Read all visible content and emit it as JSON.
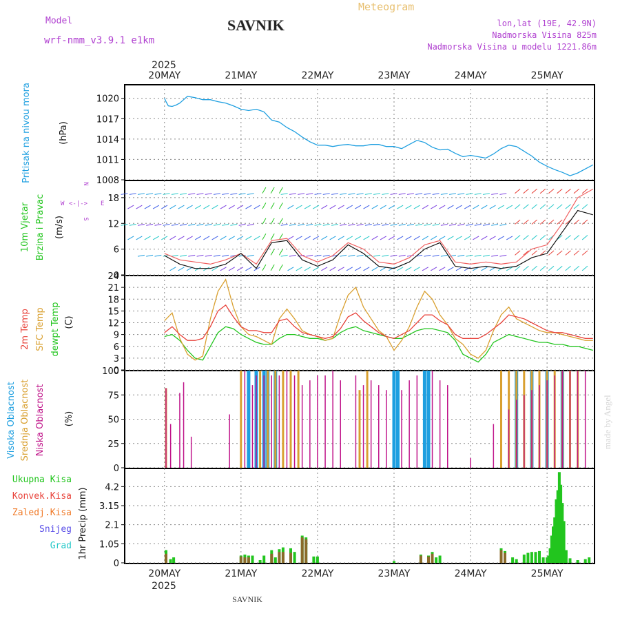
{
  "header": {
    "model_label": "Model",
    "model_name": "wrf-nmm_v3.9.1  e1km",
    "title": "SAVNIK",
    "product": "Meteogram",
    "coords": "lon,lat (19E, 42.9N)",
    "altitude": "Nadmorska Visina 825m",
    "model_altitude": "Nadmorska Visina u modelu 1221.86m",
    "footer": "SAVNIK",
    "credit": "made by Angel",
    "year": "2025"
  },
  "colors": {
    "pressure": "#1e9fe0",
    "t2m": "#e8423a",
    "sfc": "#d9a030",
    "dewpt": "#22c51e",
    "cloud_high": "#1e9fe0",
    "cloud_mid": "#d9a030",
    "cloud_low": "#c0158a",
    "precip_total": "#22c51e",
    "precip_conv": "#e8423a",
    "precip_frz": "#f07a28",
    "snow": "#5a4fe8",
    "graupel": "#22c8c8",
    "wind_label": "#22c51e",
    "cloud_label_model": "#b040d0",
    "grid": "#888888"
  },
  "chart_data": [
    {
      "type": "line",
      "panel": "pressure",
      "ylabel": [
        "Pritisak na nivou mora",
        "(hPa)"
      ],
      "ylim": [
        1008,
        1022
      ],
      "yticks": [
        1008,
        1011,
        1014,
        1017,
        1020
      ],
      "x_days": [
        "20MAY",
        "21MAY",
        "22MAY",
        "23MAY",
        "24MAY",
        "25MAY"
      ],
      "grid": true,
      "series": [
        {
          "key": "pressure",
          "x": [
            0,
            0.02,
            0.05,
            0.1,
            0.15,
            0.2,
            0.3,
            0.4,
            0.5,
            0.6,
            0.7,
            0.8,
            0.9,
            1.0,
            1.1,
            1.2,
            1.3,
            1.4,
            1.5,
            1.6,
            1.7,
            1.8,
            1.9,
            2.0,
            2.1,
            2.2,
            2.3,
            2.4,
            2.5,
            2.6,
            2.7,
            2.8,
            2.9,
            3.0,
            3.1,
            3.2,
            3.3,
            3.4,
            3.5,
            3.6,
            3.7,
            3.8,
            3.9,
            4.0,
            4.1,
            4.2,
            4.3,
            4.4,
            4.5,
            4.6,
            4.7,
            4.8,
            4.9,
            5.0,
            5.1,
            5.2,
            5.3,
            5.4,
            5.5,
            5.6
          ],
          "y": [
            1020,
            1019.5,
            1018.9,
            1018.8,
            1019,
            1019.3,
            1020.3,
            1020.1,
            1019.8,
            1019.8,
            1019.5,
            1019.3,
            1018.9,
            1018.4,
            1018.2,
            1018.4,
            1018,
            1016.8,
            1016.5,
            1015.7,
            1015.1,
            1014.3,
            1013.6,
            1013.1,
            1013.1,
            1012.9,
            1013.1,
            1013.2,
            1013,
            1013,
            1013.2,
            1013.2,
            1012.9,
            1012.9,
            1012.6,
            1013.2,
            1013.8,
            1013.5,
            1012.8,
            1012.4,
            1012.5,
            1011.9,
            1011.4,
            1011.6,
            1011.4,
            1011.2,
            1011.8,
            1012.6,
            1013.1,
            1012.9,
            1012.2,
            1011.5,
            1010.6,
            1010,
            1009.5,
            1009.1,
            1008.6,
            1009,
            1009.6,
            1010.2
          ]
        }
      ]
    },
    {
      "type": "line",
      "panel": "wind",
      "ylabel": [
        "10m Vjetar",
        "Brzina i Pravac",
        "(m/s)"
      ],
      "compass": [
        "N",
        "W",
        "E",
        "S"
      ],
      "ylim": [
        0,
        22
      ],
      "yticks": [
        0,
        6,
        12,
        18
      ],
      "grid": true,
      "note": "Direction arrows in the panel fill; approximate wind speed and gust traces.",
      "series": [
        {
          "key": "wind_speed",
          "x": [
            0,
            0.2,
            0.4,
            0.6,
            0.8,
            1.0,
            1.2,
            1.4,
            1.6,
            1.8,
            2.0,
            2.2,
            2.4,
            2.6,
            2.8,
            3.0,
            3.2,
            3.4,
            3.6,
            3.8,
            4.0,
            4.2,
            4.4,
            4.6,
            4.8,
            5.0,
            5.2,
            5.4,
            5.6
          ],
          "y": [
            4.5,
            2.5,
            1.5,
            1.5,
            2.5,
            5,
            1.5,
            7.5,
            8,
            3.5,
            2,
            3.5,
            7,
            5,
            2,
            1.5,
            3,
            6,
            7.5,
            2,
            1.5,
            2,
            1.5,
            2,
            4,
            5,
            10,
            15,
            14
          ]
        },
        {
          "key": "wind_gust",
          "x": [
            0,
            0.2,
            0.4,
            0.6,
            0.8,
            1.0,
            1.2,
            1.4,
            1.6,
            1.8,
            2.0,
            2.2,
            2.4,
            2.6,
            2.8,
            3.0,
            3.2,
            3.4,
            3.6,
            3.8,
            4.0,
            4.2,
            4.4,
            4.6,
            4.8,
            5.0,
            5.2,
            5.4,
            5.6
          ],
          "y": [
            5,
            3.5,
            3,
            2.5,
            3.5,
            5,
            2.5,
            8,
            8.5,
            4.5,
            3,
            4.5,
            7.5,
            6,
            3,
            2.5,
            4,
            7,
            8,
            3,
            2.5,
            3,
            2.5,
            3,
            6,
            7,
            12,
            18,
            20
          ]
        }
      ]
    },
    {
      "type": "line",
      "panel": "temperature",
      "ylabel": [
        "2m Temp",
        "SFC Temp",
        "dewpt Temp",
        "(C)"
      ],
      "ylim": [
        0,
        24
      ],
      "yticks": [
        0,
        3,
        6,
        9,
        12,
        15,
        18,
        21,
        24
      ],
      "grid": true,
      "series": [
        {
          "key": "t2m",
          "name": "2m Temp",
          "x": [
            0,
            0.1,
            0.2,
            0.3,
            0.4,
            0.5,
            0.6,
            0.7,
            0.8,
            0.9,
            1.0,
            1.1,
            1.2,
            1.3,
            1.4,
            1.5,
            1.6,
            1.7,
            1.8,
            1.9,
            2.0,
            2.1,
            2.2,
            2.3,
            2.4,
            2.5,
            2.6,
            2.7,
            2.8,
            2.9,
            3.0,
            3.1,
            3.2,
            3.3,
            3.4,
            3.5,
            3.6,
            3.7,
            3.8,
            3.9,
            4.0,
            4.1,
            4.2,
            4.3,
            4.4,
            4.5,
            4.6,
            4.7,
            4.8,
            4.9,
            5.0,
            5.1,
            5.2,
            5.3,
            5.4,
            5.5,
            5.6
          ],
          "y": [
            9.5,
            11,
            9,
            7.5,
            7.5,
            8,
            11,
            15,
            16.5,
            13.5,
            11,
            10,
            10,
            9.5,
            9.5,
            12.5,
            13,
            11,
            9.5,
            9,
            8.5,
            8,
            8.5,
            10.5,
            13.5,
            14.5,
            12.5,
            11,
            9.5,
            8.5,
            8,
            9,
            10,
            12,
            14,
            14,
            12.5,
            11.5,
            9,
            8,
            8,
            8,
            9,
            10.5,
            12,
            14,
            13.5,
            13,
            12,
            11,
            10,
            9.5,
            9.5,
            9,
            8.5,
            8,
            8
          ]
        },
        {
          "key": "sfc",
          "name": "SFC Temp",
          "x": [
            0,
            0.1,
            0.2,
            0.3,
            0.4,
            0.5,
            0.6,
            0.7,
            0.8,
            0.9,
            1.0,
            1.1,
            1.2,
            1.3,
            1.4,
            1.5,
            1.6,
            1.7,
            1.8,
            1.9,
            2.0,
            2.1,
            2.2,
            2.3,
            2.4,
            2.5,
            2.6,
            2.7,
            2.8,
            2.9,
            3.0,
            3.1,
            3.2,
            3.3,
            3.4,
            3.5,
            3.6,
            3.7,
            3.8,
            3.9,
            4.0,
            4.1,
            4.2,
            4.3,
            4.4,
            4.5,
            4.6,
            4.7,
            4.8,
            4.9,
            5.0,
            5.1,
            5.2,
            5.3,
            5.4,
            5.5,
            5.6
          ],
          "y": [
            12.5,
            14.5,
            8,
            4,
            2.5,
            3.5,
            13,
            20,
            23,
            16,
            11,
            9,
            8.5,
            7.5,
            6.5,
            13,
            15.5,
            13,
            10,
            9,
            8.5,
            7.5,
            8,
            14,
            19,
            21,
            16,
            13,
            10,
            8.5,
            5,
            7.5,
            11,
            16,
            20,
            18,
            14,
            11.5,
            8,
            6.5,
            4,
            3,
            5,
            10,
            14,
            16,
            13,
            12,
            11,
            10,
            9.5,
            9.5,
            9,
            8.5,
            8,
            7.5,
            7.5
          ]
        },
        {
          "key": "dewpt",
          "name": "dewpt Temp",
          "x": [
            0,
            0.1,
            0.2,
            0.3,
            0.4,
            0.5,
            0.6,
            0.7,
            0.8,
            0.9,
            1.0,
            1.1,
            1.2,
            1.3,
            1.4,
            1.5,
            1.6,
            1.7,
            1.8,
            1.9,
            2.0,
            2.1,
            2.2,
            2.3,
            2.4,
            2.5,
            2.6,
            2.7,
            2.8,
            2.9,
            3.0,
            3.1,
            3.2,
            3.3,
            3.4,
            3.5,
            3.6,
            3.7,
            3.8,
            3.9,
            4.0,
            4.1,
            4.2,
            4.3,
            4.4,
            4.5,
            4.6,
            4.7,
            4.8,
            4.9,
            5.0,
            5.1,
            5.2,
            5.3,
            5.4,
            5.5,
            5.6
          ],
          "y": [
            8.5,
            9,
            7.5,
            5,
            3,
            2.5,
            6,
            9.5,
            11,
            10.5,
            9,
            8,
            7,
            6.5,
            6.5,
            8,
            9,
            9,
            8.5,
            8,
            8,
            7.5,
            8,
            9.5,
            10.5,
            11,
            10,
            9.5,
            9,
            8.5,
            8,
            8,
            9,
            10,
            10.5,
            10.5,
            10,
            9.5,
            7.5,
            4,
            3,
            2,
            4,
            7,
            8,
            9,
            8.5,
            8,
            7.5,
            7,
            7,
            6.5,
            6.5,
            6,
            6,
            5.5,
            5
          ]
        }
      ]
    },
    {
      "type": "bar",
      "panel": "clouds",
      "ylabel": [
        "Visoka Oblacnost",
        "Srednja Oblacnost",
        "Niska Oblacnost",
        "(%)"
      ],
      "ylim": [
        0,
        100
      ],
      "yticks": [
        0,
        25,
        50,
        75,
        100
      ],
      "grid": true,
      "note": "Stacked hourly cloud cover bars; approximate.",
      "series": [
        {
          "key": "cloud_low",
          "name": "Niska Oblacnost",
          "x": [
            0.02,
            0.08,
            0.2,
            0.25,
            0.35,
            0.85,
            1.05,
            1.15,
            1.2,
            1.3,
            1.4,
            1.5,
            1.6,
            1.7,
            1.8,
            1.9,
            2.0,
            2.1,
            2.2,
            2.3,
            2.5,
            2.6,
            2.7,
            2.8,
            2.9,
            3.1,
            3.2,
            3.3,
            3.5,
            3.6,
            3.7,
            4.0,
            4.3,
            4.5,
            4.6,
            4.7,
            4.8,
            4.9,
            5.0,
            5.1,
            5.2,
            5.3,
            5.4,
            5.5
          ],
          "y": [
            82,
            45,
            77,
            88,
            32,
            55,
            100,
            85,
            95,
            95,
            95,
            95,
            100,
            95,
            85,
            90,
            95,
            95,
            100,
            90,
            95,
            85,
            90,
            85,
            80,
            80,
            90,
            95,
            100,
            90,
            85,
            10,
            45,
            60,
            70,
            75,
            80,
            85,
            90,
            95,
            100,
            100,
            100,
            100
          ]
        },
        {
          "key": "cloud_mid",
          "name": "Srednja Oblacnost",
          "x": [
            0.02,
            1.0,
            1.25,
            1.35,
            1.45,
            1.55,
            1.65,
            1.75,
            2.55,
            2.65,
            4.4,
            4.5,
            4.6,
            4.7,
            4.8,
            4.9,
            5.0,
            5.1,
            5.2,
            5.3,
            5.4
          ],
          "y": [
            82,
            100,
            100,
            100,
            100,
            100,
            100,
            100,
            80,
            100,
            100,
            100,
            100,
            100,
            100,
            100,
            100,
            100,
            100,
            100,
            100
          ]
        },
        {
          "key": "cloud_high",
          "name": "Visoka Oblacnost",
          "x": [
            1.1,
            1.2,
            1.3,
            1.35,
            1.45,
            3.0,
            3.05,
            3.4,
            3.45,
            4.6,
            4.8,
            5.0,
            5.2
          ],
          "y": [
            100,
            100,
            100,
            100,
            100,
            100,
            100,
            100,
            100,
            100,
            100,
            100,
            100
          ]
        }
      ]
    },
    {
      "type": "bar",
      "panel": "precip",
      "ylabel": [
        "1hr Precip (mm)"
      ],
      "legend": [
        "Ukupna Kisa",
        "Konvek.Kisa",
        "Zaledj.Kisa",
        "Snijeg",
        "Grad"
      ],
      "ylim": [
        0,
        5.2
      ],
      "yticks": [
        0,
        1.05,
        2.1,
        3.15,
        4.2
      ],
      "grid": true,
      "series": [
        {
          "key": "precip_total",
          "name": "Ukupna Kisa",
          "x": [
            0.02,
            0.08,
            0.12,
            1.0,
            1.05,
            1.1,
            1.15,
            1.25,
            1.3,
            1.4,
            1.45,
            1.5,
            1.55,
            1.65,
            1.7,
            1.8,
            1.85,
            1.95,
            2.0,
            3.0,
            3.35,
            3.45,
            3.5,
            3.55,
            3.6,
            4.4,
            4.45,
            4.55,
            4.6,
            4.7,
            4.75,
            4.8,
            4.85,
            4.9,
            4.95,
            5.0,
            5.02,
            5.04,
            5.06,
            5.08,
            5.1,
            5.12,
            5.14,
            5.16,
            5.18,
            5.2,
            5.22,
            5.25,
            5.3,
            5.4,
            5.5,
            5.55
          ],
          "y": [
            0.7,
            0.2,
            0.3,
            0.4,
            0.45,
            0.4,
            0.4,
            0.15,
            0.4,
            0.7,
            0.3,
            0.75,
            0.85,
            0.8,
            0.6,
            1.5,
            1.4,
            0.35,
            0.35,
            0.1,
            0.45,
            0.4,
            0.6,
            0.3,
            0.4,
            0.8,
            0.65,
            0.3,
            0.2,
            0.45,
            0.55,
            0.6,
            0.6,
            0.65,
            0.3,
            0.3,
            0.4,
            0.8,
            1.5,
            2.0,
            2.5,
            3.5,
            4.0,
            5.0,
            4.3,
            3.3,
            2.3,
            0.7,
            0.25,
            0.15,
            0.2,
            0.3
          ]
        },
        {
          "key": "precip_conv",
          "name": "Konvek.Kisa",
          "x": [
            0.02,
            1.0,
            1.05,
            1.1,
            1.4,
            1.5,
            1.55,
            1.65,
            1.8,
            1.85,
            3.35,
            3.45,
            3.5,
            4.4,
            4.45
          ],
          "y": [
            0.5,
            0.35,
            0.3,
            0.3,
            0.5,
            0.6,
            0.6,
            0.55,
            1.4,
            1.3,
            0.4,
            0.35,
            0.5,
            0.7,
            0.55
          ]
        }
      ]
    }
  ]
}
